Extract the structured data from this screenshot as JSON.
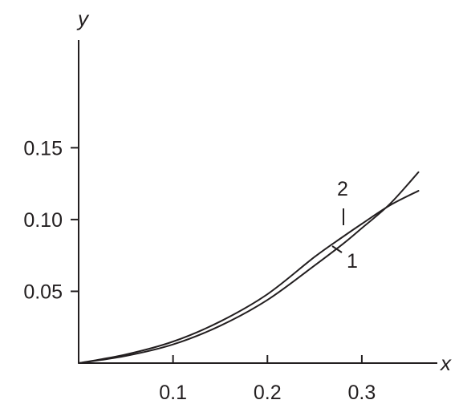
{
  "chart_data": {
    "type": "line",
    "title": "",
    "xlabel": "x",
    "ylabel": "y",
    "xlim": [
      0,
      0.38
    ],
    "ylim": [
      0,
      0.225
    ],
    "x_ticks": [
      {
        "value": 0.1,
        "label": "0.1"
      },
      {
        "value": 0.2,
        "label": "0.2"
      },
      {
        "value": 0.3,
        "label": "0.3"
      }
    ],
    "y_ticks": [
      {
        "value": 0.05,
        "label": "0.05"
      },
      {
        "value": 0.1,
        "label": "0.10"
      },
      {
        "value": 0.15,
        "label": "0.15"
      }
    ],
    "grid": false,
    "legend": "none",
    "series": [
      {
        "name": "1",
        "x": [
          0,
          0.05,
          0.1,
          0.15,
          0.2,
          0.25,
          0.28,
          0.3,
          0.33,
          0.36
        ],
        "y": [
          0,
          0.005,
          0.013,
          0.026,
          0.044,
          0.068,
          0.083,
          0.094,
          0.111,
          0.133
        ]
      },
      {
        "name": "2",
        "x": [
          0,
          0.05,
          0.1,
          0.15,
          0.2,
          0.25,
          0.28,
          0.3,
          0.33,
          0.36
        ],
        "y": [
          0,
          0.006,
          0.015,
          0.029,
          0.048,
          0.074,
          0.088,
          0.097,
          0.11,
          0.12
        ]
      }
    ]
  }
}
